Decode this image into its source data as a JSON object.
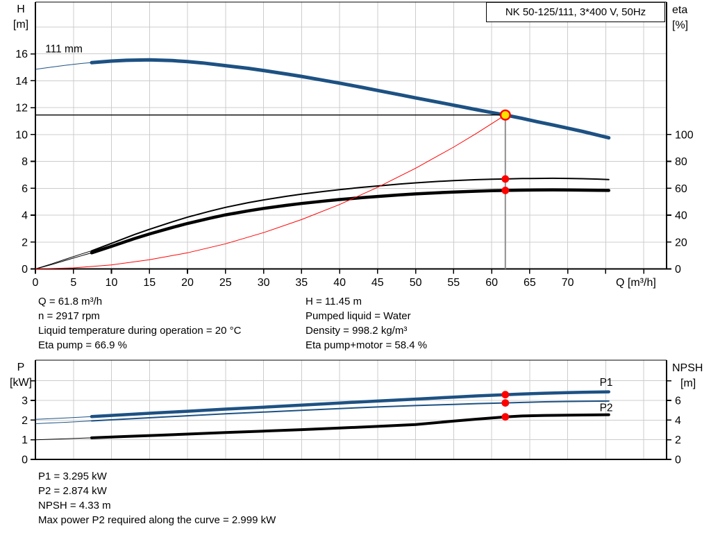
{
  "title_box": {
    "label": "NK 50-125/111, 3*400 V, 50Hz"
  },
  "info_top": {
    "left": [
      "Q = 61.8 m³/h",
      "n = 2917 rpm",
      "Liquid temperature during operation = 20 °C",
      "Eta pump = 66.9 %"
    ],
    "right": [
      "H = 11.45 m",
      "Pumped liquid = Water",
      "Density = 998.2 kg/m³",
      "Eta pump+motor = 58.4 %"
    ]
  },
  "info_bottom": [
    "P1 = 3.295 kW",
    "P2 = 2.874 kW",
    "NPSH = 4.33 m",
    "Max power P2 required along the curve = 2.999 kW"
  ],
  "colors": {
    "curve_blue": "#1d5183",
    "red": "#ff0000",
    "yellow": "#ffe100",
    "grid": "#cccccc",
    "gray_line": "#8f8f8f",
    "black": "#000000"
  },
  "chart_data": [
    {
      "id": "qh",
      "type": "line",
      "title": "NK 50-125/111, 3*400 V, 50Hz",
      "x_axis": {
        "label": "Q [m³/h]",
        "min": 0,
        "max": 83,
        "show_ticks": true,
        "major_ticks": [
          0,
          5,
          10,
          15,
          20,
          25,
          30,
          35,
          40,
          45,
          50,
          55,
          60,
          65,
          70
        ],
        "minor_ticks": [
          75,
          80
        ],
        "grid_values": [
          5,
          10,
          15,
          20,
          25,
          30,
          35,
          40,
          45,
          50,
          55,
          60,
          65,
          70,
          75,
          80
        ]
      },
      "y_left": {
        "label": "H",
        "unit": "[m]",
        "min": 0,
        "max": 19.85,
        "tick_values": [
          0,
          2,
          4,
          6,
          8,
          10,
          12,
          14,
          16
        ],
        "minor_ticks": [],
        "grid_values": [
          2,
          4,
          6,
          8,
          10,
          12,
          14,
          16,
          18
        ]
      },
      "y_right": {
        "label": "eta",
        "unit": "[%]",
        "to_left_factor": 0.1,
        "unit_indent": 0,
        "tick_values": [
          0,
          20,
          40,
          60,
          80,
          100
        ],
        "minor_ticks": []
      },
      "series": [
        {
          "name": "111 mm pump curve",
          "axis": "left",
          "color": "#1d5183",
          "width": 5,
          "thin_until": 7.4,
          "points": [
            [
              0,
              14.85
            ],
            [
              2,
              15.0
            ],
            [
              4,
              15.15
            ],
            [
              6,
              15.28
            ],
            [
              7.4,
              15.35
            ],
            [
              10,
              15.46
            ],
            [
              12,
              15.52
            ],
            [
              15,
              15.55
            ],
            [
              18,
              15.5
            ],
            [
              20,
              15.42
            ],
            [
              22,
              15.32
            ],
            [
              25,
              15.12
            ],
            [
              28,
              14.92
            ],
            [
              30,
              14.76
            ],
            [
              33,
              14.5
            ],
            [
              35,
              14.32
            ],
            [
              38,
              14.02
            ],
            [
              40,
              13.82
            ],
            [
              43,
              13.5
            ],
            [
              45,
              13.28
            ],
            [
              48,
              12.95
            ],
            [
              50,
              12.72
            ],
            [
              53,
              12.4
            ],
            [
              55,
              12.18
            ],
            [
              58,
              11.85
            ],
            [
              60,
              11.63
            ],
            [
              61.8,
              11.45
            ],
            [
              64,
              11.2
            ],
            [
              66,
              10.95
            ],
            [
              68,
              10.72
            ],
            [
              70,
              10.47
            ],
            [
              72,
              10.22
            ],
            [
              74,
              9.95
            ],
            [
              75.4,
              9.75
            ]
          ]
        },
        {
          "name": "eta pump",
          "axis": "right",
          "color": "#000000",
          "width": 2,
          "thin_until": 7.4,
          "points": [
            [
              0,
              0
            ],
            [
              2,
              3.5
            ],
            [
              4,
              7.3
            ],
            [
              6,
              11
            ],
            [
              7.4,
              13.5
            ],
            [
              10,
              19
            ],
            [
              13,
              25.5
            ],
            [
              15,
              29.5
            ],
            [
              18,
              35
            ],
            [
              20,
              38.5
            ],
            [
              23,
              43
            ],
            [
              25,
              45.8
            ],
            [
              28,
              49.3
            ],
            [
              30,
              51.3
            ],
            [
              33,
              54
            ],
            [
              35,
              55.6
            ],
            [
              38,
              57.7
            ],
            [
              40,
              59
            ],
            [
              43,
              60.7
            ],
            [
              45,
              61.7
            ],
            [
              48,
              63.2
            ],
            [
              50,
              64
            ],
            [
              53,
              65.1
            ],
            [
              55,
              65.7
            ],
            [
              58,
              66.4
            ],
            [
              60,
              66.7
            ],
            [
              61.8,
              66.9
            ],
            [
              64,
              67.2
            ],
            [
              66,
              67.3
            ],
            [
              68,
              67.4
            ],
            [
              70,
              67.3
            ],
            [
              72,
              67.1
            ],
            [
              74,
              66.8
            ],
            [
              75.4,
              66.5
            ]
          ]
        },
        {
          "name": "eta pump+motor",
          "axis": "right",
          "color": "#000000",
          "width": 4.5,
          "thin_until": 7.4,
          "points": [
            [
              0,
              0
            ],
            [
              2,
              3
            ],
            [
              4,
              6.4
            ],
            [
              6,
              9.7
            ],
            [
              7.4,
              12
            ],
            [
              10,
              16.8
            ],
            [
              13,
              22.5
            ],
            [
              15,
              26
            ],
            [
              18,
              30.8
            ],
            [
              20,
              33.8
            ],
            [
              23,
              37.8
            ],
            [
              25,
              40.2
            ],
            [
              28,
              43.2
            ],
            [
              30,
              45
            ],
            [
              33,
              47.3
            ],
            [
              35,
              48.7
            ],
            [
              38,
              50.5
            ],
            [
              40,
              51.6
            ],
            [
              43,
              53
            ],
            [
              45,
              53.9
            ],
            [
              48,
              55.1
            ],
            [
              50,
              55.8
            ],
            [
              53,
              56.7
            ],
            [
              55,
              57.2
            ],
            [
              58,
              57.8
            ],
            [
              60,
              58.2
            ],
            [
              61.8,
              58.4
            ],
            [
              64,
              58.6
            ],
            [
              66,
              58.7
            ],
            [
              68,
              58.8
            ],
            [
              70,
              58.7
            ],
            [
              72,
              58.6
            ],
            [
              74,
              58.5
            ],
            [
              75.4,
              58.4
            ]
          ]
        },
        {
          "name": "system curve",
          "axis": "left",
          "color": "#ff0000",
          "width": 1,
          "thin_until": null,
          "points": [
            [
              0,
              0
            ],
            [
              5,
              0.08
            ],
            [
              10,
              0.3
            ],
            [
              15,
              0.68
            ],
            [
              20,
              1.2
            ],
            [
              25,
              1.87
            ],
            [
              30,
              2.7
            ],
            [
              35,
              3.67
            ],
            [
              40,
              4.79
            ],
            [
              45,
              6.07
            ],
            [
              50,
              7.49
            ],
            [
              55,
              9.06
            ],
            [
              58,
              10.08
            ],
            [
              61.8,
              11.45
            ]
          ]
        }
      ],
      "duty_lines": {
        "h_value": 11.45,
        "q_value": 61.8
      },
      "markers": [
        {
          "type": "duty",
          "axis": "left",
          "q": 61.8,
          "v": 11.45
        },
        {
          "type": "dot",
          "axis": "right",
          "q": 61.8,
          "v": 66.9
        },
        {
          "type": "dot",
          "axis": "right",
          "q": 61.8,
          "v": 58.4
        }
      ],
      "annotations": [
        {
          "text": "111 mm",
          "q": 1.3,
          "v": 16.1,
          "color": "#000000"
        }
      ]
    },
    {
      "id": "power",
      "type": "line",
      "title": "",
      "x_axis": {
        "label": "",
        "min": 0,
        "max": 83,
        "show_ticks": false,
        "major_ticks": [],
        "minor_ticks": [],
        "grid_values": [
          5,
          10,
          15,
          20,
          25,
          30,
          35,
          40,
          45,
          50,
          55,
          60,
          65,
          70,
          75,
          80
        ]
      },
      "y_left": {
        "label": "P",
        "unit": "[kW]",
        "min": 0,
        "max": 5.05,
        "tick_values": [
          0,
          1,
          2,
          3
        ],
        "minor_ticks": [
          4
        ],
        "grid_values": [
          1,
          2,
          3,
          4
        ]
      },
      "y_right": {
        "label": "NPSH",
        "unit": "[m]",
        "to_left_factor": 0.5,
        "unit_indent": 12,
        "tick_values": [
          0,
          2,
          4,
          6
        ],
        "minor_ticks": [
          8
        ]
      },
      "series": [
        {
          "name": "P1",
          "axis": "left",
          "color": "#1d5183",
          "width": 4.5,
          "thin_until": 7.4,
          "points": [
            [
              0,
              2.04
            ],
            [
              4,
              2.11
            ],
            [
              7.4,
              2.18
            ],
            [
              12,
              2.28
            ],
            [
              16,
              2.37
            ],
            [
              20,
              2.45
            ],
            [
              25,
              2.56
            ],
            [
              30,
              2.66
            ],
            [
              35,
              2.76
            ],
            [
              40,
              2.87
            ],
            [
              45,
              2.97
            ],
            [
              50,
              3.07
            ],
            [
              55,
              3.17
            ],
            [
              58,
              3.23
            ],
            [
              61.8,
              3.295
            ],
            [
              64,
              3.33
            ],
            [
              67,
              3.37
            ],
            [
              70,
              3.4
            ],
            [
              72,
              3.42
            ],
            [
              75.4,
              3.44
            ]
          ]
        },
        {
          "name": "P2",
          "axis": "left",
          "color": "#1d5183",
          "width": 2,
          "thin_until": 7.4,
          "points": [
            [
              0,
              1.82
            ],
            [
              4,
              1.89
            ],
            [
              7.4,
              1.96
            ],
            [
              12,
              2.06
            ],
            [
              16,
              2.14
            ],
            [
              20,
              2.22
            ],
            [
              25,
              2.32
            ],
            [
              30,
              2.41
            ],
            [
              35,
              2.5
            ],
            [
              40,
              2.59
            ],
            [
              45,
              2.67
            ],
            [
              50,
              2.74
            ],
            [
              55,
              2.8
            ],
            [
              58,
              2.84
            ],
            [
              61.8,
              2.874
            ],
            [
              64,
              2.9
            ],
            [
              67,
              2.93
            ],
            [
              70,
              2.95
            ],
            [
              72,
              2.96
            ],
            [
              75.4,
              2.97
            ]
          ]
        },
        {
          "name": "NPSH",
          "axis": "right",
          "color": "#000000",
          "width": 4,
          "thin_until": 7.4,
          "points": [
            [
              0,
              2.0
            ],
            [
              4,
              2.1
            ],
            [
              7.4,
              2.2
            ],
            [
              12,
              2.34
            ],
            [
              16,
              2.46
            ],
            [
              20,
              2.58
            ],
            [
              25,
              2.73
            ],
            [
              30,
              2.88
            ],
            [
              35,
              3.03
            ],
            [
              40,
              3.19
            ],
            [
              45,
              3.36
            ],
            [
              50,
              3.55
            ],
            [
              55,
              3.9
            ],
            [
              58,
              4.1
            ],
            [
              61.8,
              4.33
            ],
            [
              64,
              4.42
            ],
            [
              67,
              4.48
            ],
            [
              70,
              4.5
            ],
            [
              72,
              4.52
            ],
            [
              75.4,
              4.55
            ]
          ]
        }
      ],
      "duty_lines": null,
      "markers": [
        {
          "type": "dot",
          "axis": "left",
          "q": 61.8,
          "v": 3.295
        },
        {
          "type": "dot",
          "axis": "left",
          "q": 61.8,
          "v": 2.874
        },
        {
          "type": "dot",
          "axis": "right",
          "q": 61.8,
          "v": 4.33
        }
      ],
      "annotations": [
        {
          "text": "P1",
          "q": 74.2,
          "v": 3.75,
          "color": "#1d5183"
        },
        {
          "text": "P2",
          "q": 74.2,
          "v": 2.45,
          "color": "#1d5183"
        }
      ]
    }
  ]
}
